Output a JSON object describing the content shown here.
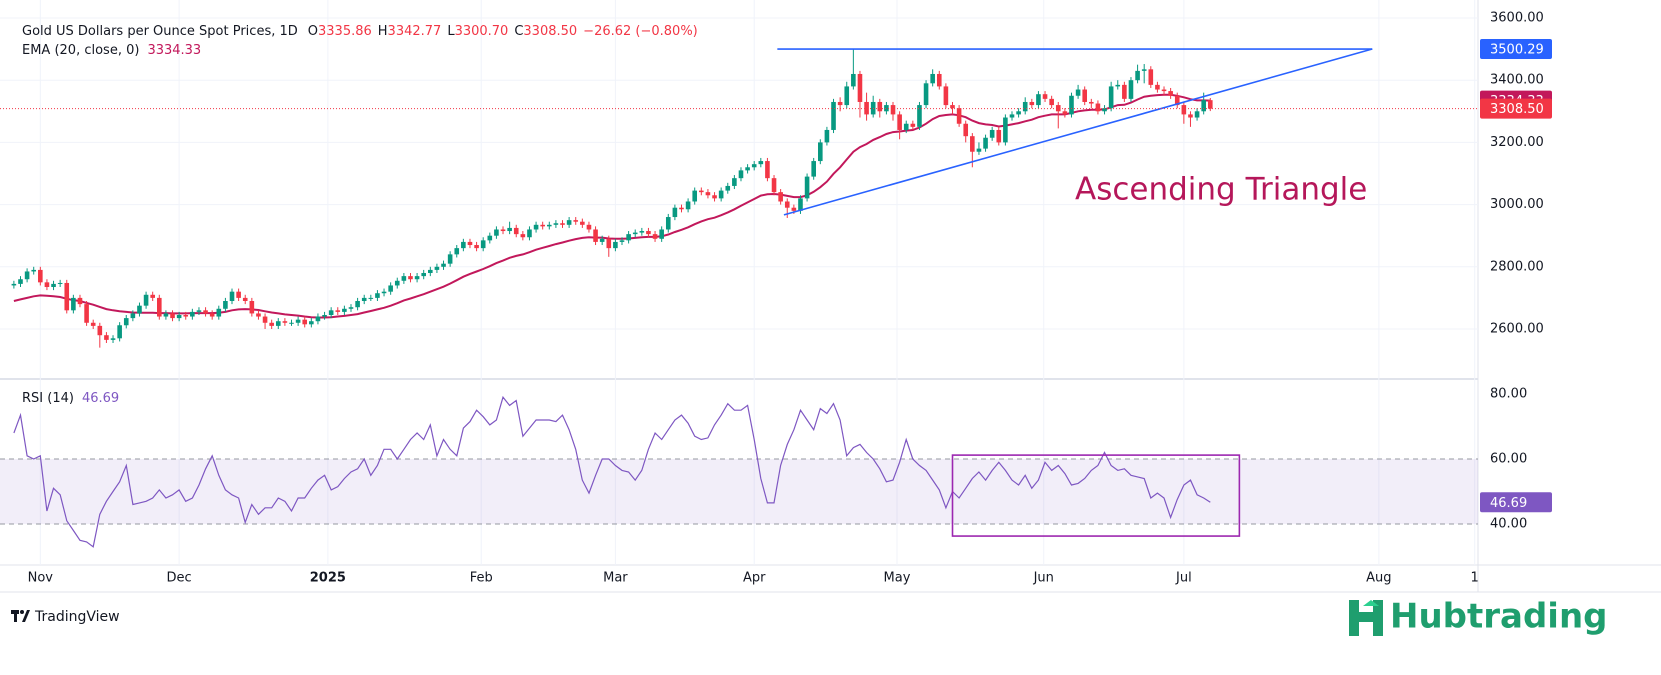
{
  "chart_data": [
    {
      "type": "candlestick",
      "title": "Gold US Dollars per Ounce Spot Prices, 1D",
      "ohlc_legend": [
        {
          "key": "O",
          "value": "3335.86"
        },
        {
          "key": "H",
          "value": "3342.77"
        },
        {
          "key": "L",
          "value": "3300.70"
        },
        {
          "key": "C",
          "value": "3308.50"
        }
      ],
      "change": "−26.62 (−0.80%)",
      "up_color": "#089981",
      "down_color": "#f23645",
      "xlim": [
        -2.1,
        221.5
      ],
      "ylim": [
        2442.4,
        3657.9
      ],
      "yticks": [
        {
          "value": 2600,
          "label": "2600.00"
        },
        {
          "value": 2800,
          "label": "2800.00"
        },
        {
          "value": 3000,
          "label": "3000.00"
        },
        {
          "value": 3200,
          "label": "3200.00"
        },
        {
          "value": 3400,
          "label": "3400.00"
        },
        {
          "value": 3600,
          "label": "3600.00"
        }
      ],
      "grid": true,
      "open": [
        2740,
        2745,
        2760,
        2785,
        2790,
        2750,
        2735,
        2745,
        2748,
        2660,
        2700,
        2680,
        2620,
        2610,
        2580,
        2565,
        2570,
        2612,
        2635,
        2650,
        2675,
        2710,
        2700,
        2640,
        2650,
        2635,
        2645,
        2640,
        2655,
        2660,
        2650,
        2640,
        2665,
        2690,
        2720,
        2700,
        2690,
        2650,
        2640,
        2620,
        2610,
        2625,
        2620,
        2620,
        2630,
        2615,
        2625,
        2640,
        2645,
        2660,
        2655,
        2665,
        2670,
        2690,
        2700,
        2700,
        2715,
        2720,
        2740,
        2755,
        2770,
        2760,
        2770,
        2780,
        2790,
        2800,
        2810,
        2840,
        2860,
        2880,
        2870,
        2860,
        2885,
        2900,
        2920,
        2915,
        2925,
        2905,
        2895,
        2920,
        2935,
        2930,
        2935,
        2940,
        2935,
        2950,
        2945,
        2935,
        2920,
        2880,
        2890,
        2860,
        2880,
        2885,
        2905,
        2910,
        2915,
        2905,
        2890,
        2920,
        2960,
        2990,
        2985,
        3010,
        3045,
        3040,
        3030,
        3020,
        3045,
        3060,
        3085,
        3110,
        3120,
        3130,
        3140,
        3085,
        3040,
        3010,
        2990,
        2980,
        3020,
        3090,
        3140,
        3200,
        3240,
        3330,
        3320,
        3380,
        3420,
        3330,
        3290,
        3330,
        3300,
        3320,
        3290,
        3240,
        3260,
        3250,
        3320,
        3390,
        3420,
        3380,
        3320,
        3310,
        3260,
        3220,
        3170,
        3180,
        3215,
        3240,
        3200,
        3280,
        3290,
        3300,
        3330,
        3320,
        3355,
        3340,
        3320,
        3300,
        3290,
        3350,
        3370,
        3330,
        3325,
        3300,
        3310,
        3380,
        3385,
        3340,
        3400,
        3430,
        3435,
        3385,
        3370,
        3365,
        3350,
        3320,
        3290,
        3280,
        3300,
        3335.86
      ],
      "high": [
        2755,
        2770,
        2795,
        2800,
        2800,
        2760,
        2755,
        2758,
        2758,
        2710,
        2710,
        2690,
        2630,
        2620,
        2590,
        2580,
        2622,
        2645,
        2660,
        2685,
        2720,
        2720,
        2710,
        2660,
        2660,
        2655,
        2655,
        2665,
        2670,
        2670,
        2660,
        2675,
        2700,
        2730,
        2730,
        2710,
        2700,
        2660,
        2650,
        2630,
        2635,
        2635,
        2630,
        2640,
        2640,
        2635,
        2650,
        2655,
        2670,
        2670,
        2675,
        2680,
        2700,
        2710,
        2710,
        2725,
        2730,
        2750,
        2765,
        2780,
        2780,
        2780,
        2790,
        2800,
        2810,
        2820,
        2850,
        2870,
        2890,
        2890,
        2880,
        2895,
        2910,
        2930,
        2930,
        2945,
        2935,
        2915,
        2930,
        2945,
        2945,
        2945,
        2950,
        2950,
        2960,
        2960,
        2955,
        2945,
        2930,
        2900,
        2900,
        2890,
        2895,
        2915,
        2920,
        2925,
        2925,
        2915,
        2930,
        2970,
        3000,
        3000,
        3020,
        3055,
        3055,
        3050,
        3040,
        3055,
        3070,
        3095,
        3120,
        3130,
        3140,
        3150,
        3150,
        3095,
        3050,
        3020,
        3000,
        3030,
        3100,
        3150,
        3210,
        3250,
        3340,
        3345,
        3395,
        3500,
        3430,
        3360,
        3350,
        3340,
        3330,
        3330,
        3300,
        3270,
        3270,
        3330,
        3400,
        3435,
        3430,
        3390,
        3330,
        3320,
        3270,
        3230,
        3200,
        3225,
        3250,
        3250,
        3290,
        3300,
        3310,
        3345,
        3340,
        3365,
        3365,
        3350,
        3330,
        3310,
        3360,
        3385,
        3380,
        3340,
        3335,
        3320,
        3395,
        3400,
        3395,
        3410,
        3450,
        3452,
        3445,
        3395,
        3380,
        3375,
        3360,
        3330,
        3300,
        3310,
        3360,
        3342.77
      ],
      "low": [
        2730,
        2735,
        2750,
        2775,
        2740,
        2725,
        2725,
        2735,
        2650,
        2650,
        2670,
        2610,
        2600,
        2540,
        2555,
        2555,
        2560,
        2602,
        2625,
        2640,
        2665,
        2690,
        2630,
        2630,
        2625,
        2625,
        2630,
        2630,
        2645,
        2640,
        2630,
        2630,
        2655,
        2680,
        2690,
        2680,
        2640,
        2630,
        2600,
        2600,
        2600,
        2610,
        2610,
        2610,
        2605,
        2605,
        2615,
        2630,
        2635,
        2645,
        2645,
        2655,
        2660,
        2680,
        2690,
        2690,
        2705,
        2710,
        2730,
        2745,
        2750,
        2750,
        2760,
        2770,
        2780,
        2790,
        2800,
        2830,
        2850,
        2860,
        2850,
        2850,
        2875,
        2890,
        2905,
        2905,
        2895,
        2885,
        2885,
        2910,
        2920,
        2920,
        2925,
        2925,
        2925,
        2935,
        2925,
        2910,
        2870,
        2870,
        2832,
        2850,
        2870,
        2875,
        2895,
        2900,
        2895,
        2880,
        2880,
        2910,
        2950,
        2975,
        2975,
        3000,
        3030,
        3020,
        3010,
        3010,
        3035,
        3050,
        3075,
        3100,
        3110,
        3120,
        3075,
        3030,
        3000,
        2957,
        2970,
        2970,
        3010,
        3080,
        3130,
        3190,
        3230,
        3300,
        3310,
        3370,
        3280,
        3270,
        3280,
        3280,
        3290,
        3270,
        3210,
        3230,
        3240,
        3240,
        3310,
        3380,
        3370,
        3310,
        3290,
        3250,
        3200,
        3120,
        3160,
        3170,
        3205,
        3190,
        3190,
        3270,
        3280,
        3290,
        3310,
        3310,
        3330,
        3310,
        3245,
        3280,
        3280,
        3340,
        3320,
        3310,
        3290,
        3290,
        3300,
        3370,
        3330,
        3330,
        3390,
        3390,
        3375,
        3360,
        3350,
        3340,
        3310,
        3260,
        3250,
        3270,
        3290,
        3300.7
      ],
      "close": [
        2745,
        2760,
        2785,
        2790,
        2750,
        2735,
        2745,
        2748,
        2660,
        2700,
        2680,
        2620,
        2610,
        2580,
        2565,
        2570,
        2612,
        2635,
        2650,
        2675,
        2710,
        2700,
        2640,
        2650,
        2635,
        2645,
        2640,
        2655,
        2660,
        2650,
        2640,
        2665,
        2690,
        2720,
        2700,
        2690,
        2650,
        2640,
        2620,
        2610,
        2625,
        2620,
        2620,
        2630,
        2615,
        2625,
        2640,
        2645,
        2660,
        2655,
        2665,
        2670,
        2690,
        2700,
        2700,
        2715,
        2720,
        2740,
        2755,
        2770,
        2760,
        2770,
        2780,
        2790,
        2800,
        2810,
        2840,
        2860,
        2880,
        2870,
        2860,
        2885,
        2900,
        2920,
        2915,
        2925,
        2905,
        2895,
        2920,
        2935,
        2930,
        2935,
        2940,
        2935,
        2950,
        2945,
        2935,
        2920,
        2880,
        2890,
        2860,
        2880,
        2885,
        2905,
        2910,
        2915,
        2905,
        2890,
        2920,
        2960,
        2990,
        2985,
        3010,
        3045,
        3040,
        3030,
        3020,
        3045,
        3060,
        3085,
        3110,
        3120,
        3130,
        3140,
        3085,
        3040,
        3010,
        2990,
        2980,
        3020,
        3090,
        3140,
        3200,
        3240,
        3330,
        3320,
        3380,
        3420,
        3330,
        3290,
        3330,
        3300,
        3320,
        3290,
        3240,
        3260,
        3250,
        3320,
        3390,
        3420,
        3380,
        3320,
        3310,
        3260,
        3220,
        3170,
        3180,
        3215,
        3240,
        3200,
        3280,
        3290,
        3300,
        3330,
        3320,
        3355,
        3340,
        3320,
        3300,
        3290,
        3350,
        3370,
        3330,
        3325,
        3300,
        3310,
        3380,
        3385,
        3340,
        3400,
        3430,
        3435,
        3385,
        3370,
        3365,
        3350,
        3320,
        3290,
        3280,
        3300,
        3335.86,
        3308.5
      ],
      "ema": {
        "name": "EMA (20, close, 0)",
        "color": "#c2185b",
        "values": [
          2690,
          2695,
          2700,
          2705,
          2708,
          2707,
          2705,
          2703,
          2697,
          2693,
          2690,
          2684,
          2678,
          2671,
          2664,
          2660,
          2657,
          2655,
          2653,
          2652,
          2652,
          2652,
          2651,
          2651,
          2650,
          2650,
          2650,
          2651,
          2651,
          2651,
          2651,
          2652,
          2655,
          2660,
          2663,
          2664,
          2663,
          2661,
          2657,
          2653,
          2650,
          2647,
          2645,
          2643,
          2640,
          2638,
          2637,
          2637,
          2638,
          2640,
          2642,
          2645,
          2648,
          2653,
          2658,
          2663,
          2668,
          2675,
          2683,
          2692,
          2698,
          2705,
          2712,
          2720,
          2728,
          2736,
          2746,
          2757,
          2768,
          2777,
          2785,
          2793,
          2802,
          2812,
          2820,
          2829,
          2835,
          2840,
          2847,
          2855,
          2861,
          2867,
          2873,
          2878,
          2884,
          2889,
          2893,
          2895,
          2894,
          2894,
          2891,
          2890,
          2890,
          2891,
          2893,
          2895,
          2896,
          2896,
          2898,
          2904,
          2912,
          2919,
          2927,
          2937,
          2946,
          2953,
          2958,
          2966,
          2975,
          2985,
          2996,
          3007,
          3018,
          3029,
          3033,
          3034,
          3032,
          3028,
          3024,
          3024,
          3030,
          3041,
          3056,
          3074,
          3099,
          3120,
          3145,
          3170,
          3185,
          3195,
          3208,
          3217,
          3227,
          3233,
          3235,
          3238,
          3240,
          3248,
          3260,
          3275,
          3285,
          3288,
          3290,
          3287,
          3281,
          3270,
          3262,
          3258,
          3256,
          3251,
          3254,
          3258,
          3262,
          3268,
          3273,
          3281,
          3286,
          3290,
          3290,
          3290,
          3295,
          3300,
          3303,
          3305,
          3305,
          3306,
          3313,
          3320,
          3321,
          3328,
          3338,
          3347,
          3350,
          3352,
          3353,
          3353,
          3350,
          3345,
          3339,
          3335,
          3335,
          3334.33
        ],
        "last": {
          "value": 3334.33,
          "label": "3334.33"
        }
      },
      "last_price": {
        "value": 3308.5,
        "label": "3308.50",
        "color": "#f23645"
      },
      "level": {
        "value": 3500.29,
        "label": "3500.29",
        "color": "#2962ff"
      },
      "lines": [
        {
          "color": "#2962ff",
          "x": [
            115.5,
            205.5
          ],
          "y": [
            3500.29,
            3500.29
          ]
        },
        {
          "color": "#2962ff",
          "x": [
            116.5,
            205.5
          ],
          "y": [
            2967,
            3500.29
          ]
        }
      ],
      "annotation": "Ascending Triangle",
      "annotation_color": "#b5175a"
    },
    {
      "type": "line",
      "title": "RSI (14)",
      "color": "#7e57c2",
      "xlim": [
        -2.1,
        221.5
      ],
      "ylim": [
        27.4,
        84.3
      ],
      "yticks": [
        {
          "value": 40,
          "label": "40.00"
        },
        {
          "value": 60,
          "label": "60.00"
        },
        {
          "value": 80,
          "label": "80.00"
        }
      ],
      "band": [
        40,
        60
      ],
      "xticks": [
        {
          "value": 4,
          "label": "Nov"
        },
        {
          "value": 25,
          "label": "Dec"
        },
        {
          "value": 47.5,
          "label": "2025"
        },
        {
          "value": 70.7,
          "label": "Feb"
        },
        {
          "value": 91,
          "label": "Mar"
        },
        {
          "value": 112,
          "label": "Apr"
        },
        {
          "value": 133.6,
          "label": "May"
        },
        {
          "value": 155.8,
          "label": "Jun"
        },
        {
          "value": 177,
          "label": "Jul"
        },
        {
          "value": 206.5,
          "label": "Aug"
        },
        {
          "value": 221,
          "label": "1"
        }
      ],
      "values": [
        68,
        73.5,
        61,
        60,
        61,
        44,
        51,
        49,
        41,
        38,
        35,
        34.5,
        33,
        43,
        47,
        50,
        53,
        58,
        46,
        46.5,
        47,
        48,
        50.5,
        48,
        49,
        50.5,
        47,
        48,
        52,
        57,
        61,
        55,
        50.5,
        49,
        48,
        40.5,
        46,
        43,
        45,
        45,
        48,
        47,
        44,
        48,
        48,
        51,
        53.5,
        55,
        50.5,
        51.5,
        54,
        56,
        57,
        60,
        55,
        58,
        63,
        63,
        60,
        63,
        66,
        68,
        66,
        70.5,
        61,
        66,
        63,
        61,
        69.5,
        71.5,
        75,
        73,
        70.5,
        72,
        79,
        76.5,
        78,
        67,
        69.5,
        72,
        72,
        72,
        71.5,
        73.5,
        69,
        63,
        53.5,
        49.5,
        55,
        60,
        60,
        58,
        56.5,
        56,
        53.5,
        56.5,
        63,
        68,
        66,
        69,
        72,
        73.5,
        71,
        67,
        66,
        66.5,
        70.5,
        73.5,
        77,
        75,
        75,
        76.5,
        66,
        54,
        46.5,
        46.5,
        58,
        64.5,
        69,
        75,
        72,
        69,
        75.5,
        74,
        77,
        72,
        61,
        63.5,
        64.5,
        62,
        60,
        57,
        53,
        53.5,
        59,
        66,
        60,
        58,
        56.5,
        53.5,
        50.5,
        45,
        50,
        48,
        51,
        54,
        56,
        53.5,
        56.5,
        59,
        56.5,
        53.5,
        52,
        55,
        51,
        53.5,
        59,
        56.5,
        58,
        55.5,
        52,
        52.5,
        54,
        56.5,
        58,
        62,
        58,
        56.5,
        57,
        55,
        54.5,
        54,
        48,
        49.5,
        48,
        42,
        47.5,
        52,
        53.5,
        49,
        48,
        46.69
      ],
      "last": {
        "value": 46.69,
        "label": "46.69"
      },
      "box": {
        "color": "#9c27b0",
        "x": [
          142,
          185.4
        ],
        "y": [
          36.3,
          61.2
        ]
      }
    }
  ],
  "footer": {
    "tradingview": "TradingView",
    "brand": "Hubtrading"
  }
}
